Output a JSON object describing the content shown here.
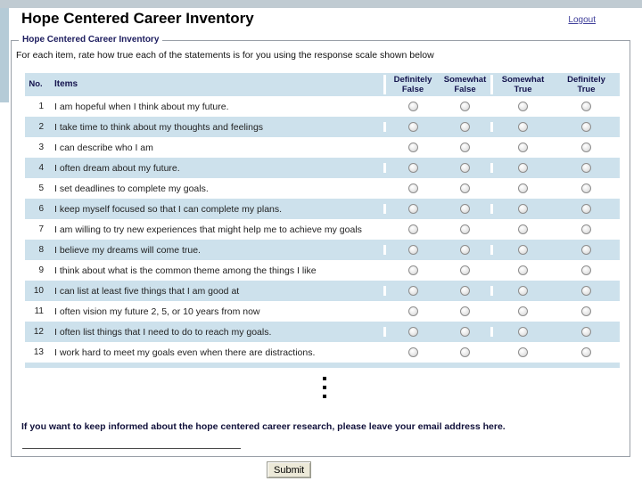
{
  "page": {
    "title": "Hope Centered Career Inventory",
    "logout_label": "Logout"
  },
  "form": {
    "legend": "Hope Centered Career Inventory",
    "instruction": "For each item, rate how true each of the statements is for you using the response scale shown below",
    "table": {
      "col_no": "No.",
      "col_items": "Items",
      "scale": [
        {
          "line1": "Definitely",
          "line2": "False"
        },
        {
          "line1": "Somewhat",
          "line2": "False"
        },
        {
          "line1": "Somewhat",
          "line2": "True"
        },
        {
          "line1": "Definitely",
          "line2": "True"
        }
      ],
      "items": [
        {
          "no": "1",
          "text": "I am hopeful when I think about my future."
        },
        {
          "no": "2",
          "text": "I take time to think about my thoughts and feelings"
        },
        {
          "no": "3",
          "text": "I can describe who I am"
        },
        {
          "no": "4",
          "text": "I often dream about my future."
        },
        {
          "no": "5",
          "text": "I set deadlines to complete my goals."
        },
        {
          "no": "6",
          "text": "I keep myself focused so that I can complete my plans."
        },
        {
          "no": "7",
          "text": "I am willing to try new experiences that might help me to achieve my goals"
        },
        {
          "no": "8",
          "text": "I believe my dreams will come true."
        },
        {
          "no": "9",
          "text": "I think about what is the common theme among the things I like"
        },
        {
          "no": "10",
          "text": "I can list at least five things that I am good at"
        },
        {
          "no": "11",
          "text": "I often vision my future 2, 5, or 10 years from now"
        },
        {
          "no": "12",
          "text": "I often list things that I need to do to reach my goals."
        },
        {
          "no": "13",
          "text": "I work hard to meet my goals even when there are distractions."
        }
      ],
      "selected_values": []
    },
    "email_prompt": "If you want to keep informed about the hope centered career research, please leave your email address here.",
    "email_value": "",
    "submit_label": "Submit"
  },
  "colors": {
    "row_alt_bg": "#cde1ec",
    "header_bg": "#cde1ec",
    "header_text": "#14144e",
    "frame_band": "#b5cbd7",
    "link": "#3d3d99",
    "button_bg": "#ece9d8"
  }
}
